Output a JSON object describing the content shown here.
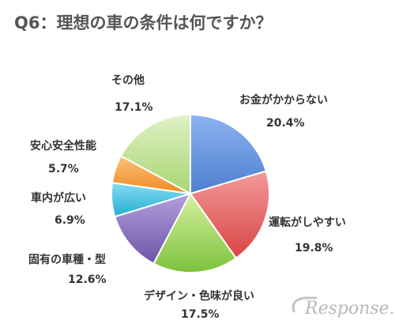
{
  "chart_data": {
    "type": "pie",
    "title": "Q6：理想の車の条件は何ですか？",
    "slices": [
      {
        "label": "お金がかからない",
        "value": 20.4,
        "value_label": "20.4%",
        "color": "#6f9be2"
      },
      {
        "label": "運転がしやすい",
        "value": 19.8,
        "value_label": "19.8%",
        "color": "#ec6a6a"
      },
      {
        "label": "デザイン・色味が良い",
        "value": 17.5,
        "value_label": "17.5%",
        "color": "#9ed465"
      },
      {
        "label": "固有の車種・型",
        "value": 12.6,
        "value_label": "12.6%",
        "color": "#8f78bf"
      },
      {
        "label": "車内が広い",
        "value": 6.9,
        "value_label": "6.9%",
        "color": "#45c6e3"
      },
      {
        "label": "安心安全性能",
        "value": 5.7,
        "value_label": "5.7%",
        "color": "#f6a249"
      },
      {
        "label": "その他",
        "value": 17.1,
        "value_label": "17.1%",
        "color": "#c4e39d"
      }
    ],
    "start_angle": "12 o'clock",
    "direction": "clockwise",
    "legend": "none"
  },
  "brand": {
    "logo_text": "Response."
  }
}
